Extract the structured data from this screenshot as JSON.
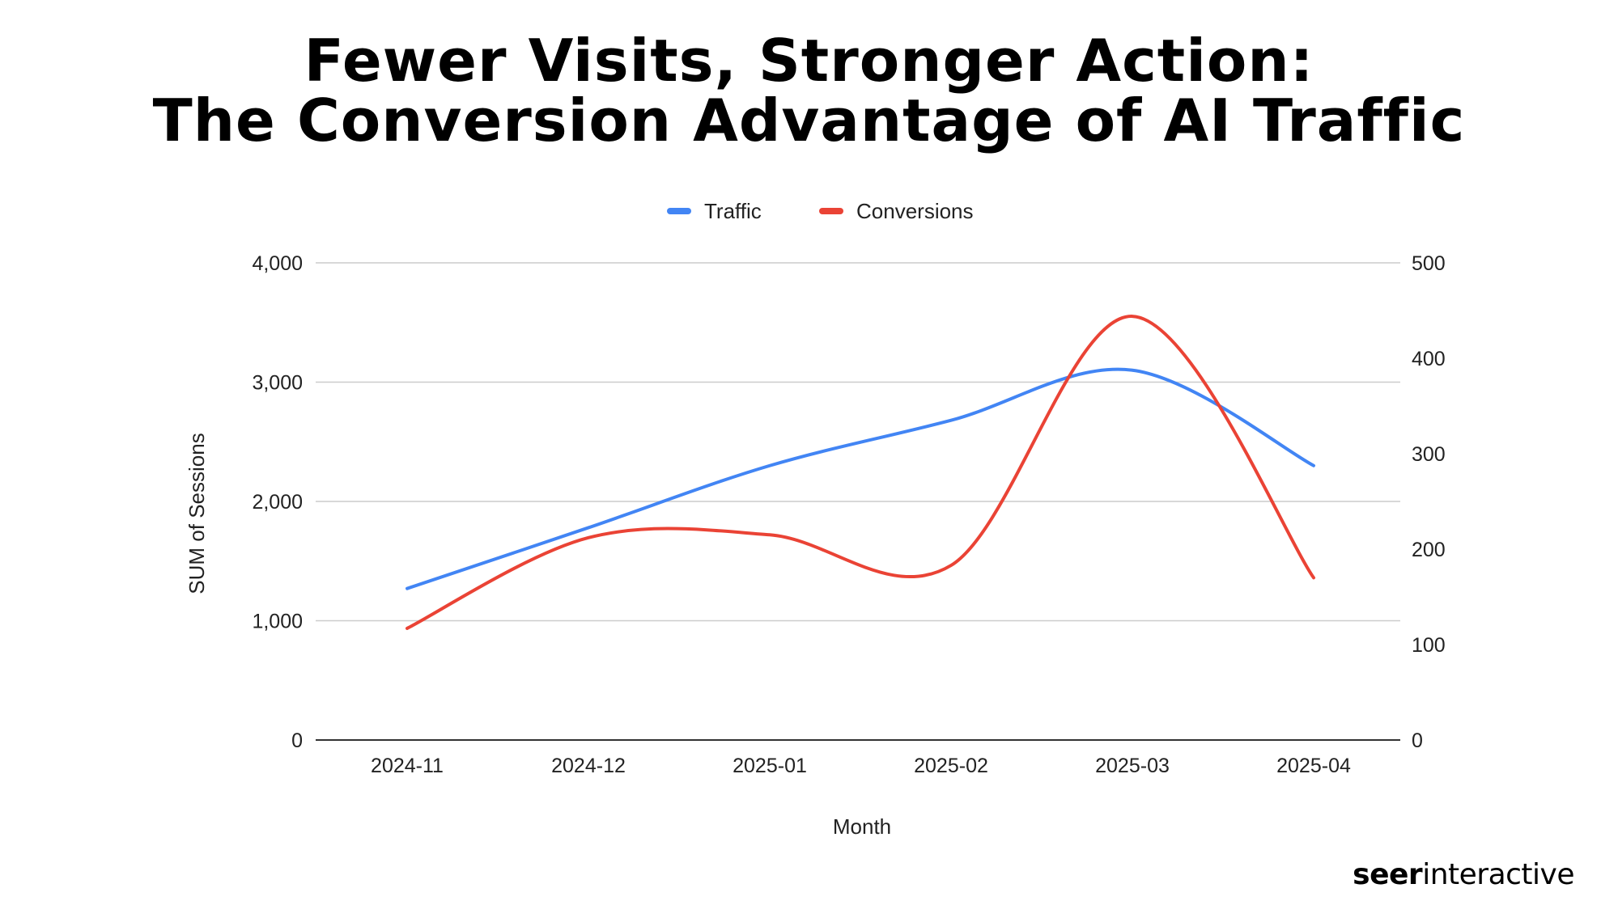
{
  "title": {
    "line1": "Fewer Visits, Stronger Action:",
    "line2": "The Conversion Advantage of AI Traffic"
  },
  "branding": {
    "bold_part": "seer",
    "regular_part": "interactive"
  },
  "colors": {
    "traffic": "#4285F4",
    "conversions": "#EA4335",
    "grid": "#cccccc",
    "axis": "#333333"
  },
  "chart_data": {
    "type": "line",
    "smooth": true,
    "categories": [
      "2024-11",
      "2024-12",
      "2025-01",
      "2025-02",
      "2025-03",
      "2025-04"
    ],
    "xlabel": "Month",
    "ylabel": "SUM of Sessions",
    "y_left": {
      "range": [
        0,
        4000
      ],
      "ticks": [
        0,
        1000,
        2000,
        3000,
        4000
      ],
      "tick_labels": [
        "0",
        "1,000",
        "2,000",
        "3,000",
        "4,000"
      ]
    },
    "y_right": {
      "range": [
        0,
        500
      ],
      "ticks": [
        0,
        100,
        200,
        300,
        400,
        500
      ],
      "tick_labels": [
        "0",
        "100",
        "200",
        "300",
        "400",
        "500"
      ]
    },
    "grid": true,
    "legend_position": "top-center",
    "series": [
      {
        "name": "Traffic",
        "axis": "left",
        "color": "#4285F4",
        "values": [
          1270,
          1780,
          2300,
          2680,
          3100,
          2300
        ]
      },
      {
        "name": "Conversions",
        "axis": "right",
        "color": "#EA4335",
        "values": [
          117,
          212,
          215,
          183,
          444,
          170
        ]
      }
    ]
  }
}
